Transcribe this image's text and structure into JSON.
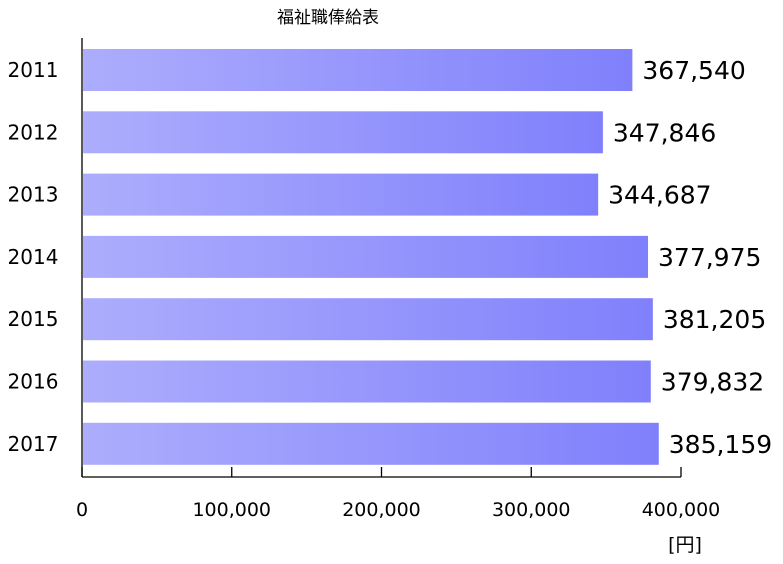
{
  "chart_data": {
    "type": "bar",
    "orientation": "horizontal",
    "title": "福祉職俸給表",
    "categories": [
      "2011",
      "2012",
      "2013",
      "2014",
      "2015",
      "2016",
      "2017"
    ],
    "values": [
      367540,
      347846,
      344687,
      377975,
      381205,
      379832,
      385159
    ],
    "value_labels": [
      "367,540",
      "347,846",
      "344,687",
      "377,975",
      "381,205",
      "379,832",
      "385,159"
    ],
    "xlim": [
      0,
      400000
    ],
    "x_ticks": [
      0,
      100000,
      200000,
      300000,
      400000
    ],
    "x_tick_labels": [
      "0",
      "100,000",
      "200,000",
      "300,000",
      "400,000"
    ],
    "xlabel": "",
    "ylabel": "",
    "unit_label": "[円]",
    "grid": false,
    "legend": "none",
    "colors": {
      "bar_gradient_start": "#adadfd",
      "bar_gradient_end": "#8080fc",
      "axis": "#000000"
    }
  }
}
